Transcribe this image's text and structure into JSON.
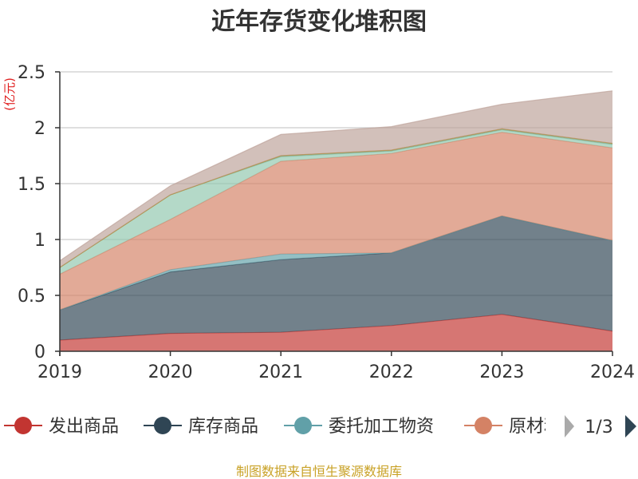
{
  "chart_data": {
    "type": "area",
    "stacked": true,
    "title": "近年存货变化堆积图",
    "unit_label": "(亿元)",
    "x": [
      "2019",
      "2020",
      "2021",
      "2022",
      "2023",
      "2024"
    ],
    "ylim": [
      0,
      2.5
    ],
    "yticks": [
      "0",
      "0.5",
      "1",
      "1.5",
      "2",
      "2.5"
    ],
    "grid": true,
    "series": [
      {
        "name": "发出商品",
        "color": "#c23531",
        "values": [
          0.1,
          0.16,
          0.17,
          0.23,
          0.33,
          0.18
        ]
      },
      {
        "name": "库存商品",
        "color": "#2f4554",
        "values": [
          0.27,
          0.55,
          0.65,
          0.65,
          0.88,
          0.81
        ]
      },
      {
        "name": "委托加工物资",
        "color": "#61a0a8",
        "values": [
          0.0,
          0.02,
          0.05,
          0.0,
          0.0,
          0.0
        ]
      },
      {
        "name": "原材料",
        "color": "#d48265",
        "values": [
          0.32,
          0.45,
          0.83,
          0.89,
          0.75,
          0.83
        ]
      },
      {
        "name": "",
        "color": "#91c7ae",
        "values": [
          0.06,
          0.22,
          0.04,
          0.02,
          0.02,
          0.03
        ]
      },
      {
        "name": "",
        "color": "#749f83",
        "values": [
          0.0,
          0.0,
          0.01,
          0.01,
          0.01,
          0.01
        ]
      },
      {
        "name": "",
        "color": "#ca8622",
        "values": [
          0.0,
          0.0,
          0.0,
          0.0,
          0.0,
          0.0
        ]
      },
      {
        "name": "",
        "color": "#bda29a",
        "values": [
          0.06,
          0.08,
          0.19,
          0.21,
          0.22,
          0.47
        ]
      }
    ],
    "legend": {
      "position": "bottom",
      "visible_items": [
        "发出商品",
        "库存商品",
        "委托加工物资",
        "原材料"
      ],
      "page_label": "1/3"
    },
    "source": "制图数据来自恒生聚源数据库"
  }
}
